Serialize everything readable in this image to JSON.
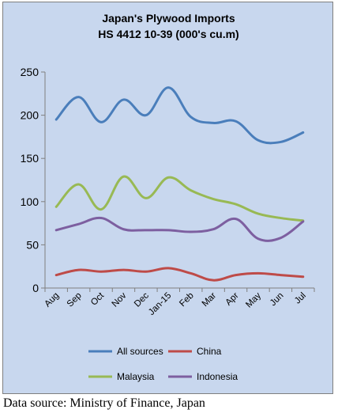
{
  "chart_data": {
    "type": "line",
    "title": "Japan's Plywood Imports",
    "subtitle": "HS 4412 10-39  (000's cu.m)",
    "xlabel": "",
    "ylabel": "",
    "ylim": [
      0,
      250
    ],
    "yticks": [
      0,
      50,
      100,
      150,
      200,
      250
    ],
    "grid": false,
    "legend_position": "bottom",
    "categories": [
      "Aug",
      "Sep",
      "Oct",
      "Nov",
      "Dec",
      "Jan-15",
      "Feb",
      "Mar",
      "Apr",
      "May",
      "Jun",
      "Jul"
    ],
    "series": [
      {
        "name": "All sources",
        "color": "#4a7ebb",
        "values": [
          195,
          221,
          192,
          218,
          200,
          232,
          198,
          191,
          193,
          171,
          169,
          180
        ]
      },
      {
        "name": "China",
        "color": "#be4b48",
        "values": [
          15,
          21,
          19,
          21,
          19,
          23,
          17,
          9,
          15,
          17,
          15,
          13
        ]
      },
      {
        "name": "Malaysia",
        "color": "#98b954",
        "values": [
          94,
          120,
          91,
          129,
          104,
          128,
          113,
          103,
          97,
          86,
          81,
          78
        ]
      },
      {
        "name": "Indonesia",
        "color": "#7d5fa0",
        "values": [
          67,
          74,
          81,
          68,
          67,
          67,
          65,
          68,
          80,
          57,
          58,
          77
        ]
      }
    ]
  },
  "source_note": "Data source: Ministry of Finance, Japan"
}
